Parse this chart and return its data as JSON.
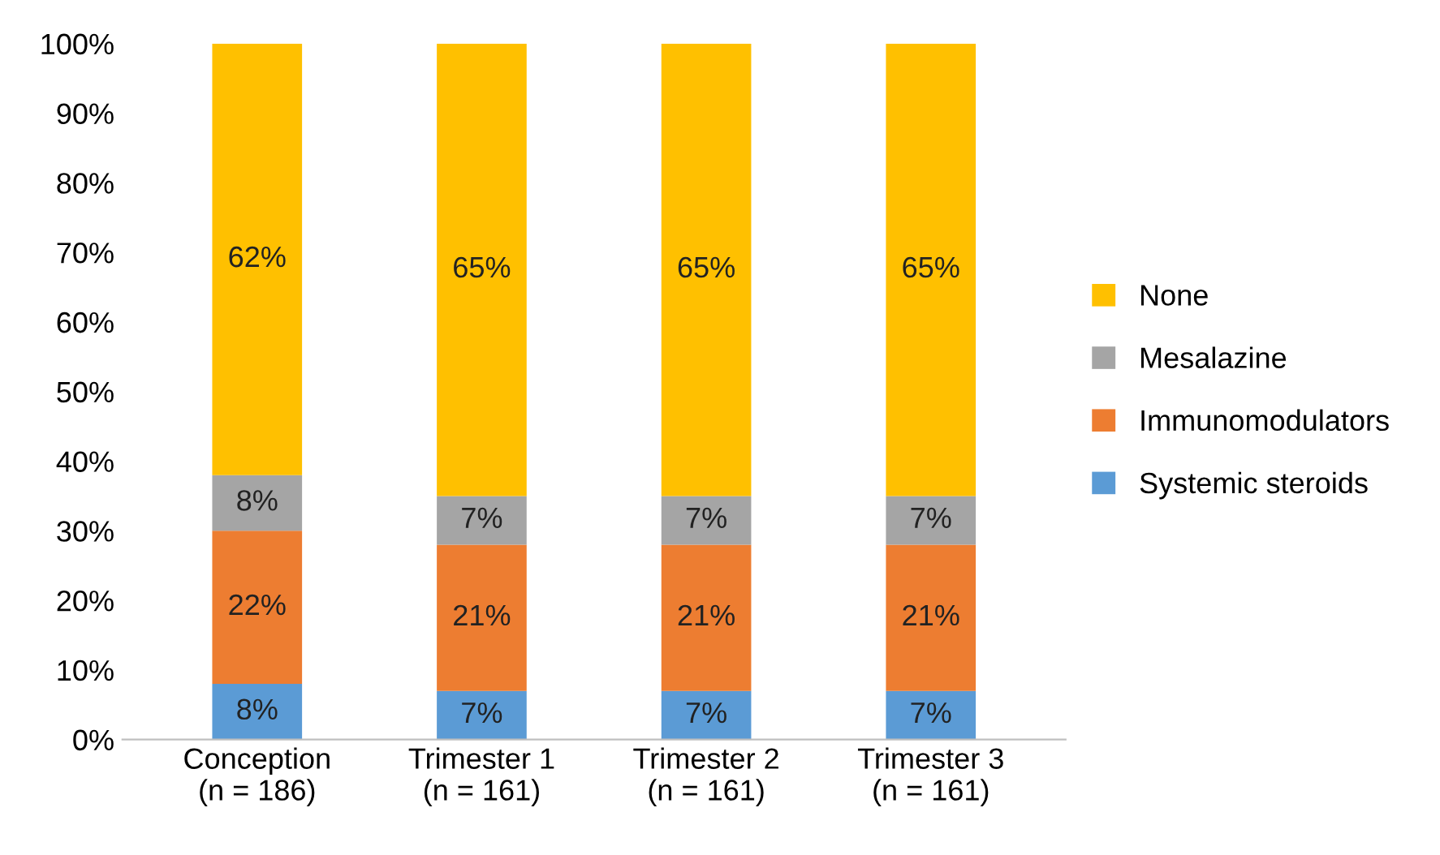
{
  "chart_data": {
    "type": "bar",
    "stacked": true,
    "categories": [
      "Conception\n(n = 186)",
      "Trimester 1\n(n = 161)",
      "Trimester 2\n(n = 161)",
      "Trimester 3\n(n = 161)"
    ],
    "series": [
      {
        "name": "Systemic steroids",
        "color": "#5b9bd5",
        "values": [
          8,
          7,
          7,
          7
        ],
        "value_labels": [
          "8%",
          "7%",
          "7%",
          "7%"
        ]
      },
      {
        "name": "Immunomodulators",
        "color": "#ed7d31",
        "values": [
          22,
          21,
          21,
          21
        ],
        "value_labels": [
          "22%",
          "21%",
          "21%",
          "21%"
        ]
      },
      {
        "name": "Mesalazine",
        "color": "#a5a5a5",
        "values": [
          8,
          7,
          7,
          7
        ],
        "value_labels": [
          "8%",
          "7%",
          "7%",
          "7%"
        ]
      },
      {
        "name": "None",
        "color": "#ffc000",
        "values": [
          62,
          65,
          65,
          65
        ],
        "value_labels": [
          "62%",
          "65%",
          "65%",
          "65%"
        ]
      }
    ],
    "ylim": [
      0,
      100
    ],
    "yticks": [
      {
        "value": 0,
        "label": "0%"
      },
      {
        "value": 10,
        "label": "10%"
      },
      {
        "value": 20,
        "label": "20%"
      },
      {
        "value": 30,
        "label": "30%"
      },
      {
        "value": 40,
        "label": "40%"
      },
      {
        "value": 50,
        "label": "50%"
      },
      {
        "value": 60,
        "label": "60%"
      },
      {
        "value": 70,
        "label": "70%"
      },
      {
        "value": 80,
        "label": "80%"
      },
      {
        "value": 90,
        "label": "90%"
      },
      {
        "value": 100,
        "label": "100%"
      }
    ],
    "grid": false,
    "legend": "right"
  }
}
